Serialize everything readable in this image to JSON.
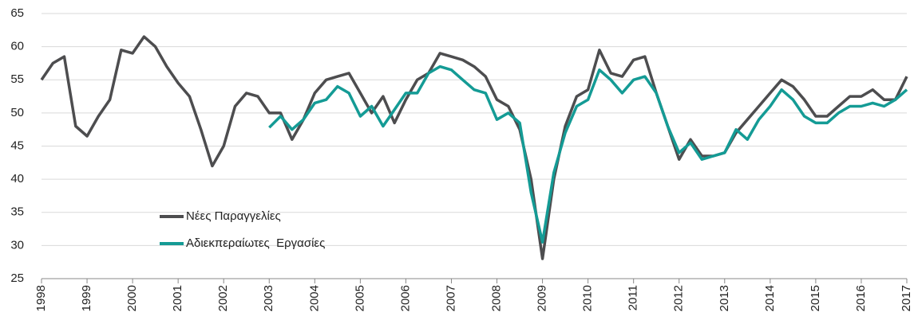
{
  "chart_data": {
    "type": "line",
    "x": [
      1998,
      1998.25,
      1998.5,
      1998.75,
      1999,
      1999.25,
      1999.5,
      1999.75,
      2000,
      2000.25,
      2000.5,
      2000.75,
      2001,
      2001.25,
      2001.5,
      2001.75,
      2002,
      2002.25,
      2002.5,
      2002.75,
      2003,
      2003.25,
      2003.5,
      2003.75,
      2004,
      2004.25,
      2004.5,
      2004.75,
      2005,
      2005.25,
      2005.5,
      2005.75,
      2006,
      2006.25,
      2006.5,
      2006.75,
      2007,
      2007.25,
      2007.5,
      2007.75,
      2008,
      2008.25,
      2008.5,
      2008.75,
      2009,
      2009.25,
      2009.5,
      2009.75,
      2010,
      2010.25,
      2010.5,
      2010.75,
      2011,
      2011.25,
      2011.5,
      2011.75,
      2012,
      2012.25,
      2012.5,
      2012.75,
      2013,
      2013.25,
      2013.5,
      2013.75,
      2014,
      2014.25,
      2014.5,
      2014.75,
      2015,
      2015.25,
      2015.5,
      2015.75,
      2016,
      2016.25,
      2016.5,
      2016.75,
      2017
    ],
    "series": [
      {
        "name": "Νέες Παραγγελίες",
        "color": "#4d4d4f",
        "values": [
          55,
          57.5,
          58.5,
          48,
          46.5,
          49.5,
          52,
          59.5,
          59,
          61.5,
          60,
          57,
          54.5,
          52.5,
          47.5,
          42,
          45,
          51,
          53,
          52.5,
          50,
          50,
          46,
          49,
          53,
          55,
          55.5,
          56,
          53,
          50,
          52.5,
          48.5,
          52,
          55,
          56,
          59,
          58.5,
          58,
          57,
          55.5,
          52,
          51,
          47.5,
          40,
          28,
          40,
          48,
          52.5,
          53.5,
          59.5,
          56,
          55.5,
          58,
          58.5,
          53,
          48,
          43,
          46,
          43.5,
          43.5,
          44,
          47,
          49,
          51,
          53,
          55,
          54,
          52,
          49.5,
          49.5,
          51,
          52.5,
          52.5,
          53.5,
          52,
          52,
          55.5
        ]
      },
      {
        "name": "Αδιεκπεραίωτες  Εργασίες",
        "color": "#149b95",
        "values": [
          null,
          null,
          null,
          null,
          null,
          null,
          null,
          null,
          null,
          null,
          null,
          null,
          null,
          null,
          null,
          null,
          null,
          null,
          null,
          null,
          47.8,
          49.5,
          47.5,
          49,
          51.5,
          52,
          54,
          53,
          49.5,
          51,
          48,
          50.5,
          53,
          53,
          56,
          57,
          56.5,
          55,
          53.5,
          53,
          49,
          50,
          48.5,
          38,
          30.5,
          41,
          47,
          51,
          52,
          56.5,
          55,
          53,
          55,
          55.5,
          53,
          48,
          44,
          45.5,
          43,
          43.5,
          44,
          47.5,
          46,
          49,
          51,
          53.5,
          52,
          49.5,
          48.5,
          48.5,
          50,
          51,
          51,
          51.5,
          51,
          52,
          53.5
        ]
      }
    ],
    "xlim": [
      1998,
      2017
    ],
    "xticks": [
      1998,
      1999,
      2000,
      2001,
      2002,
      2003,
      2004,
      2005,
      2006,
      2007,
      2008,
      2009,
      2010,
      2011,
      2012,
      2013,
      2014,
      2015,
      2016,
      2017
    ],
    "ylim": [
      25,
      65
    ],
    "yticks": [
      25,
      30,
      35,
      40,
      45,
      50,
      55,
      60,
      65
    ],
    "grid": true
  }
}
